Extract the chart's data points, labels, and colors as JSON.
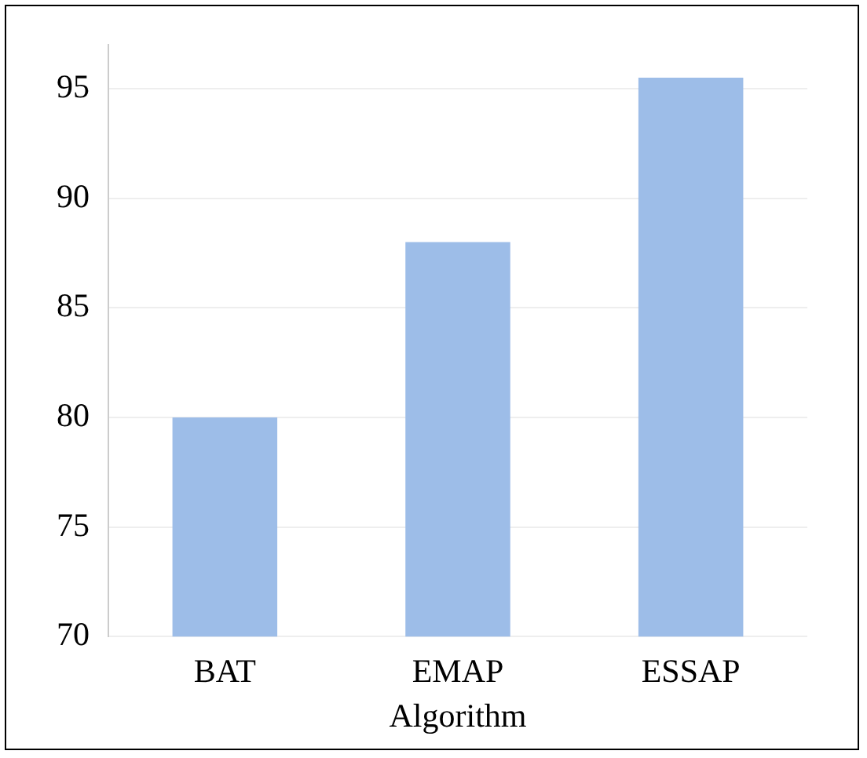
{
  "chart_data": {
    "type": "bar",
    "xlabel": "Algorithm",
    "categories": [
      "BAT",
      "EMAP",
      "ESSAP"
    ],
    "values": [
      80,
      88,
      95.5
    ],
    "color": "#9dbde8",
    "ylim": [
      70,
      97
    ],
    "yticks": [
      70,
      75,
      80,
      85,
      90,
      95
    ],
    "grid": "y"
  }
}
